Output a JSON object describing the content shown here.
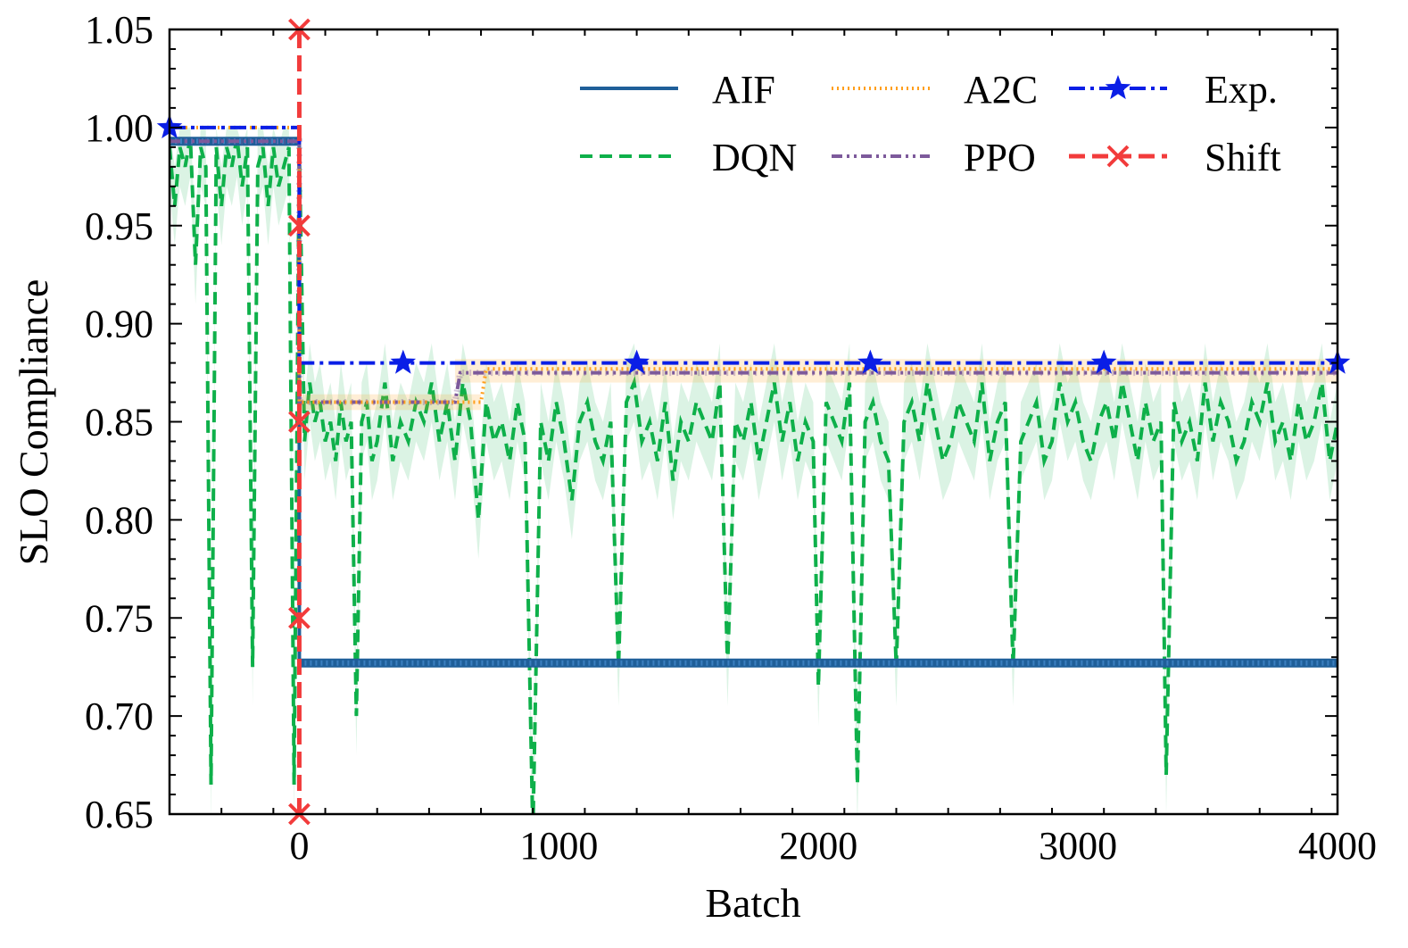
{
  "chart_data": {
    "type": "line",
    "title": "",
    "xlabel": "Batch",
    "ylabel": "SLO Compliance",
    "xlim": [
      -500,
      4000
    ],
    "ylim": [
      0.65,
      1.05
    ],
    "xticks": [
      0,
      1000,
      2000,
      3000,
      4000
    ],
    "xtick_labels": [
      "0",
      "1000",
      "2000",
      "3000",
      "4000"
    ],
    "yticks": [
      0.65,
      0.7,
      0.75,
      0.8,
      0.85,
      0.9,
      0.95,
      1.0,
      1.05
    ],
    "ytick_labels": [
      "0.65",
      "0.70",
      "0.75",
      "0.80",
      "0.85",
      "0.90",
      "0.95",
      "1.00",
      "1.05"
    ],
    "legend_position": "top-right",
    "legend": [
      "AIF",
      "A2C",
      "Exp.",
      "DQN",
      "PPO",
      "Shift"
    ],
    "colors": {
      "AIF": "#1f5f99",
      "DQN": "#0eb04a",
      "A2C": "#ff9f1c",
      "PPO": "#7d5a9b",
      "Exp": "#0a1ee6",
      "Shift": "#f23b3b"
    },
    "series": [
      {
        "name": "AIF",
        "style": "solid-dense-markers",
        "segments": [
          {
            "x": [
              -500,
              0
            ],
            "y": [
              0.993,
              0.993
            ]
          },
          {
            "x": [
              0,
              4000
            ],
            "y": [
              0.727,
              0.727
            ]
          }
        ]
      },
      {
        "name": "A2C",
        "style": "dotted",
        "x": [
          -500,
          0,
          0,
          700,
          720,
          4000
        ],
        "y": [
          1.0,
          1.0,
          0.86,
          0.86,
          0.877,
          0.877
        ]
      },
      {
        "name": "PPO",
        "style": "dashdot",
        "x": [
          -500,
          0,
          0,
          600,
          620,
          4000
        ],
        "y": [
          0.993,
          0.993,
          0.86,
          0.86,
          0.875,
          0.875
        ]
      },
      {
        "name": "Exp.",
        "style": "dashdot-star",
        "x": [
          -500,
          0,
          0,
          4000
        ],
        "y": [
          1.0,
          1.0,
          0.88,
          0.88
        ],
        "markers": {
          "x": [
            -500,
            400,
            1300,
            2200,
            3100,
            4000
          ],
          "y": [
            1.0,
            0.88,
            0.88,
            0.88,
            0.88,
            0.88
          ]
        }
      },
      {
        "name": "DQN",
        "style": "dashed",
        "x": [
          -500,
          -480,
          -460,
          -440,
          -420,
          -400,
          -380,
          -360,
          -340,
          -320,
          -300,
          -280,
          -260,
          -240,
          -220,
          -200,
          -180,
          -160,
          -140,
          -120,
          -100,
          -80,
          -60,
          -40,
          -20,
          0,
          20,
          40,
          60,
          80,
          100,
          120,
          140,
          160,
          180,
          200,
          220,
          240,
          260,
          280,
          300,
          330,
          360,
          390,
          420,
          450,
          480,
          510,
          540,
          570,
          600,
          630,
          660,
          690,
          720,
          750,
          780,
          810,
          840,
          870,
          900,
          930,
          960,
          990,
          1020,
          1050,
          1080,
          1110,
          1140,
          1170,
          1200,
          1230,
          1260,
          1290,
          1320,
          1350,
          1380,
          1410,
          1440,
          1470,
          1500,
          1530,
          1560,
          1590,
          1620,
          1650,
          1680,
          1710,
          1740,
          1770,
          1800,
          1830,
          1860,
          1890,
          1920,
          1950,
          1980,
          2000,
          2030,
          2060,
          2090,
          2120,
          2150,
          2180,
          2210,
          2240,
          2270,
          2300,
          2330,
          2360,
          2390,
          2420,
          2450,
          2480,
          2510,
          2540,
          2570,
          2600,
          2630,
          2660,
          2690,
          2720,
          2750,
          2780,
          2810,
          2840,
          2870,
          2900,
          2930,
          2960,
          2990,
          3020,
          3050,
          3080,
          3110,
          3140,
          3170,
          3200,
          3230,
          3260,
          3290,
          3320,
          3340,
          3370,
          3400,
          3430,
          3460,
          3490,
          3520,
          3550,
          3580,
          3610,
          3640,
          3670,
          3700,
          3730,
          3760,
          3790,
          3820,
          3850,
          3880,
          3910,
          3940,
          3970,
          4000
        ],
        "y": [
          0.99,
          0.96,
          0.99,
          0.98,
          0.995,
          0.93,
          0.99,
          0.98,
          0.665,
          0.99,
          0.96,
          0.99,
          0.98,
          0.995,
          0.97,
          0.99,
          0.725,
          0.98,
          0.99,
          0.96,
          0.99,
          0.97,
          0.98,
          0.99,
          0.665,
          0.99,
          0.84,
          0.87,
          0.85,
          0.86,
          0.84,
          0.85,
          0.83,
          0.86,
          0.84,
          0.85,
          0.7,
          0.85,
          0.86,
          0.83,
          0.84,
          0.87,
          0.83,
          0.85,
          0.84,
          0.86,
          0.85,
          0.87,
          0.84,
          0.86,
          0.83,
          0.87,
          0.85,
          0.8,
          0.86,
          0.84,
          0.85,
          0.83,
          0.86,
          0.84,
          0.64,
          0.85,
          0.83,
          0.86,
          0.84,
          0.81,
          0.85,
          0.86,
          0.84,
          0.83,
          0.85,
          0.725,
          0.86,
          0.87,
          0.84,
          0.85,
          0.83,
          0.86,
          0.82,
          0.85,
          0.84,
          0.86,
          0.85,
          0.84,
          0.87,
          0.725,
          0.85,
          0.84,
          0.86,
          0.83,
          0.85,
          0.87,
          0.84,
          0.86,
          0.83,
          0.85,
          0.84,
          0.715,
          0.86,
          0.85,
          0.84,
          0.87,
          0.665,
          0.85,
          0.86,
          0.84,
          0.83,
          0.725,
          0.85,
          0.86,
          0.84,
          0.87,
          0.85,
          0.83,
          0.84,
          0.86,
          0.85,
          0.84,
          0.87,
          0.83,
          0.85,
          0.86,
          0.725,
          0.84,
          0.85,
          0.86,
          0.83,
          0.84,
          0.87,
          0.85,
          0.86,
          0.84,
          0.83,
          0.85,
          0.86,
          0.84,
          0.87,
          0.85,
          0.83,
          0.86,
          0.84,
          0.85,
          0.67,
          0.86,
          0.84,
          0.85,
          0.83,
          0.87,
          0.84,
          0.86,
          0.85,
          0.83,
          0.84,
          0.86,
          0.85,
          0.87,
          0.84,
          0.85,
          0.83,
          0.86,
          0.84,
          0.85,
          0.87,
          0.83,
          0.85
        ],
        "band": 0.02
      },
      {
        "name": "Shift",
        "style": "dashed-x",
        "x": [
          0,
          0
        ],
        "y": [
          0.65,
          1.05
        ],
        "markers": {
          "x": [
            0,
            0,
            0,
            0,
            0
          ],
          "y": [
            1.05,
            0.95,
            0.85,
            0.75,
            0.65
          ]
        }
      }
    ]
  }
}
